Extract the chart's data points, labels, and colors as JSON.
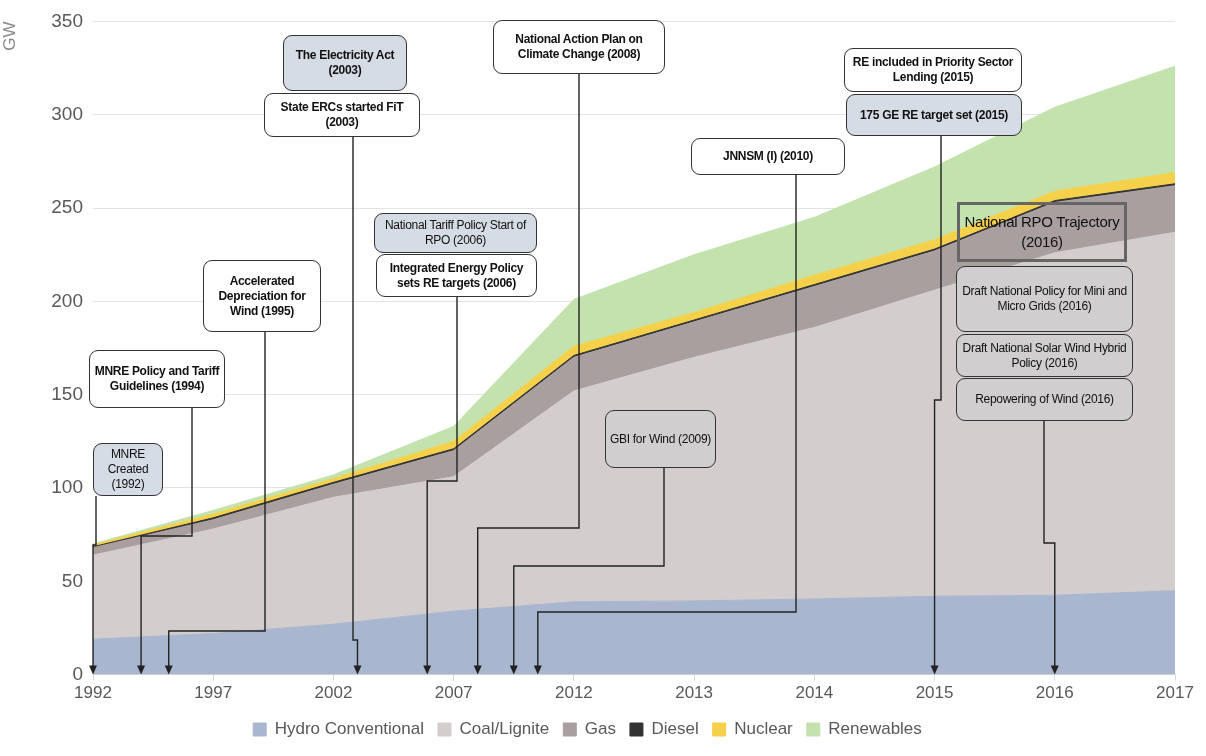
{
  "chart_data": {
    "type": "area",
    "stacked": true,
    "ylabel": "GW",
    "categories": [
      "1992",
      "1997",
      "2002",
      "2007",
      "2012",
      "2013",
      "2014",
      "2015",
      "2016",
      "2017"
    ],
    "series": [
      {
        "name": "Hydro Conventional",
        "color": "#a9b6cf",
        "values": [
          19,
          22,
          27,
          34,
          39,
          39.5,
          40.5,
          42,
          42.5,
          45
        ]
      },
      {
        "name": "Coal/Lignite",
        "color": "#d3cdcd",
        "values": [
          45,
          56,
          68,
          72,
          113,
          130.5,
          145.5,
          164,
          183.5,
          192
        ]
      },
      {
        "name": "Gas",
        "color": "#a99f9f",
        "values": [
          4,
          5,
          7,
          14,
          18,
          19,
          22,
          21,
          27,
          25
        ]
      },
      {
        "name": "Diesel",
        "color": "#333333",
        "values": [
          0.5,
          1,
          1,
          1,
          1,
          1,
          1,
          1,
          1,
          1
        ]
      },
      {
        "name": "Nuclear",
        "color": "#f5d04a",
        "values": [
          1,
          2,
          2,
          4,
          5,
          4,
          5,
          5,
          5,
          6
        ]
      },
      {
        "name": "Renewables",
        "color": "#c3e2ae",
        "values": [
          0.5,
          2,
          2,
          8,
          25,
          31,
          31,
          39,
          45,
          57
        ]
      }
    ],
    "ylim": [
      0,
      350
    ],
    "yticks": [
      0,
      50,
      100,
      150,
      200,
      250,
      300,
      350
    ],
    "grid": "y",
    "legend": "bottom",
    "annotations": [
      "MNRE Created (1992)",
      "MNRE Policy and Tariff Guidelines (1994)",
      "Accelerated Depreciation for Wind (1995)",
      "The Electricity Act (2003)",
      "State ERCs started FiT (2003)",
      "National Tariff Policy Start of RPO (2006)",
      "Integrated Energy Policy sets RE targets (2006)",
      "National Action Plan on Climate Change (2008)",
      "GBI for Wind (2009)",
      "JNNSM (I) (2010)",
      "RE included in Priority Sector Lending (2015)",
      "175 GE RE target set (2015)",
      "National RPO Trajectory (2016)",
      "Draft National Policy for Mini and Micro Grids (2016)",
      "Draft National Solar Wind Hybrid Policy (2016)",
      "Repowering of Wind (2016)"
    ]
  }
}
